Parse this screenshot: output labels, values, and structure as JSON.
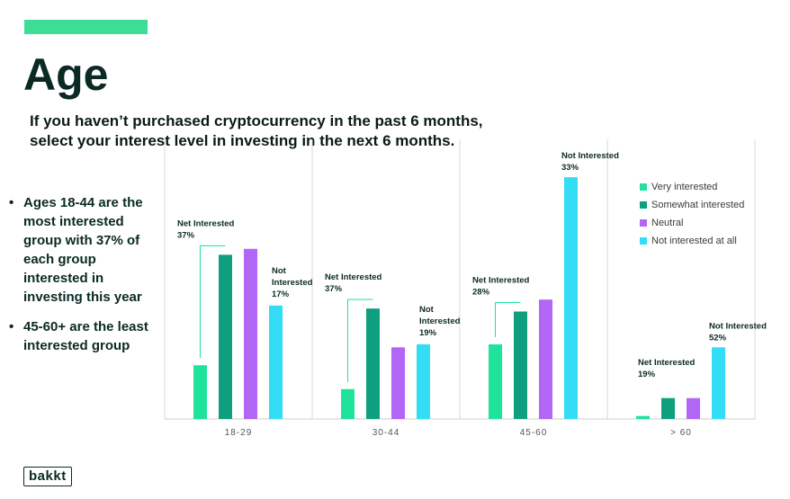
{
  "header": {
    "title": "Age",
    "subtitle_line1": "If you haven’t purchased cryptocurrency in the past 6 months,",
    "subtitle_line2": "select your interest level in investing in the next 6 months."
  },
  "bullets": [
    "Ages 18-44 are the most interested group with 37% of each group interested in investing this year",
    "45-60+ are the least interested group"
  ],
  "logo": {
    "text": "bakkt"
  },
  "colors": {
    "accent": "#3ddc97",
    "very_interested": "#1fe39a",
    "somewhat_interested": "#0e9f7e",
    "neutral": "#b266f5",
    "not_interested": "#33ddf5"
  },
  "chart_data": {
    "type": "bar",
    "categories": [
      "18-29",
      "30-44",
      "45-60",
      "> 60"
    ],
    "series": [
      {
        "name": "Very interested",
        "color": "#1fe39a",
        "values": [
          18,
          10,
          25,
          1
        ]
      },
      {
        "name": "Somewhat interested",
        "color": "#0e9f7e",
        "values": [
          55,
          37,
          36,
          7
        ]
      },
      {
        "name": "Neutral",
        "color": "#b266f5",
        "values": [
          57,
          24,
          40,
          7
        ]
      },
      {
        "name": "Not interested at all",
        "color": "#33ddf5",
        "values": [
          38,
          25,
          81,
          24
        ]
      }
    ],
    "ylim": [
      0,
      100
    ],
    "legend_position": "top-right",
    "annotations": [
      {
        "category": "18-29",
        "net_interested": {
          "label": "Net Interested",
          "value": "37%"
        },
        "not_interested": {
          "label": "Not Interested",
          "value": "17%"
        }
      },
      {
        "category": "30-44",
        "net_interested": {
          "label": "Net Interested",
          "value": "37%"
        },
        "not_interested": {
          "label": "Not Interested",
          "value": "19%"
        }
      },
      {
        "category": "45-60",
        "net_interested": {
          "label": "Net Interested",
          "value": "28%"
        },
        "not_interested": {
          "label": "Not Interested",
          "value": "33%"
        }
      },
      {
        "category": "> 60",
        "net_interested": {
          "label": "Net Interested",
          "value": "19%"
        },
        "not_interested": {
          "label": "Not Interested",
          "value": "52%"
        }
      }
    ]
  }
}
